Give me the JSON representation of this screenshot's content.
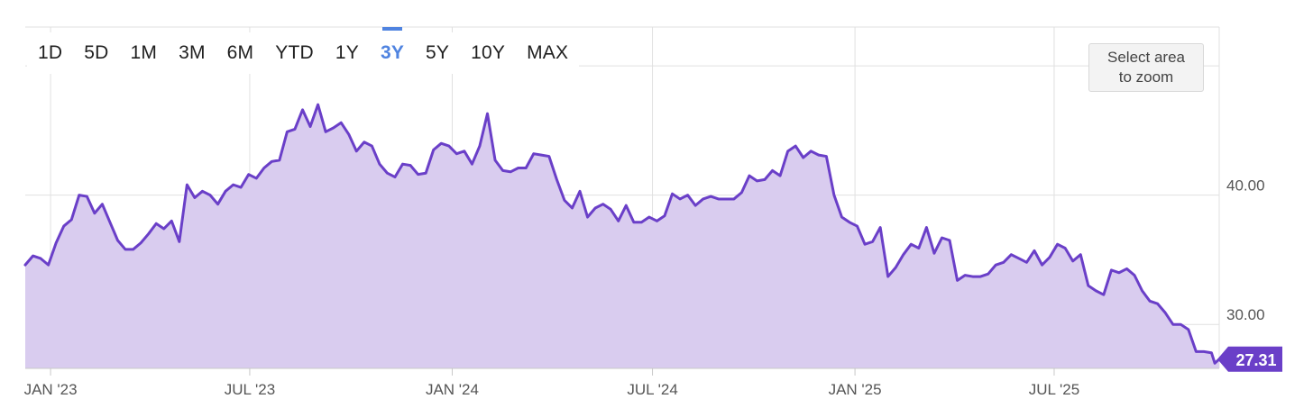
{
  "range_selector": {
    "options": [
      "1D",
      "5D",
      "1M",
      "3M",
      "6M",
      "YTD",
      "1Y",
      "3Y",
      "5Y",
      "10Y",
      "MAX"
    ],
    "selected": "3Y"
  },
  "zoom_hint": {
    "line1": "Select area",
    "line2": "to zoom"
  },
  "colors": {
    "line": "#6a3fc8",
    "fill": "#d9ccef",
    "grid": "#e0e0e0",
    "axis_text": "#555555",
    "active_range": "#4f83e0",
    "price_tag_bg": "#6a3fc8",
    "price_tag_text": "#ffffff"
  },
  "chart_data": {
    "type": "area",
    "title": "",
    "xlabel": "",
    "ylabel": "",
    "x_ticks": [
      "JAN '23",
      "JUL '23",
      "JAN '24",
      "JUL '24",
      "JAN '25",
      "JUL '25"
    ],
    "x_tick_dates": [
      "2023-01-01",
      "2023-07-01",
      "2024-01-01",
      "2024-07-01",
      "2025-01-01",
      "2025-07-01"
    ],
    "y_ticks": [
      "40.00",
      "30.00"
    ],
    "y_tick_values": [
      40,
      30
    ],
    "ylim": [
      26.6,
      53.0
    ],
    "xlim": [
      "2022-12-09",
      "2025-11-28"
    ],
    "grid": true,
    "last_price": "27.31",
    "series": [
      {
        "values": [
          [
            "2022-12-09",
            34.6
          ],
          [
            "2022-12-16",
            35.3
          ],
          [
            "2022-12-23",
            35.1
          ],
          [
            "2022-12-30",
            34.6
          ],
          [
            "2023-01-06",
            36.3
          ],
          [
            "2023-01-13",
            37.6
          ],
          [
            "2023-01-20",
            38.1
          ],
          [
            "2023-01-27",
            40.0
          ],
          [
            "2023-02-03",
            39.9
          ],
          [
            "2023-02-10",
            38.6
          ],
          [
            "2023-02-17",
            39.3
          ],
          [
            "2023-02-24",
            37.9
          ],
          [
            "2023-03-03",
            36.5
          ],
          [
            "2023-03-10",
            35.8
          ],
          [
            "2023-03-17",
            35.8
          ],
          [
            "2023-03-24",
            36.3
          ],
          [
            "2023-03-31",
            37.0
          ],
          [
            "2023-04-07",
            37.8
          ],
          [
            "2023-04-14",
            37.4
          ],
          [
            "2023-04-21",
            38.0
          ],
          [
            "2023-04-28",
            36.4
          ],
          [
            "2023-05-05",
            40.8
          ],
          [
            "2023-05-12",
            39.8
          ],
          [
            "2023-05-19",
            40.3
          ],
          [
            "2023-05-26",
            40.0
          ],
          [
            "2023-06-02",
            39.3
          ],
          [
            "2023-06-09",
            40.3
          ],
          [
            "2023-06-16",
            40.8
          ],
          [
            "2023-06-23",
            40.6
          ],
          [
            "2023-06-30",
            41.6
          ],
          [
            "2023-07-07",
            41.3
          ],
          [
            "2023-07-14",
            42.1
          ],
          [
            "2023-07-21",
            42.6
          ],
          [
            "2023-07-28",
            42.7
          ],
          [
            "2023-08-04",
            44.9
          ],
          [
            "2023-08-11",
            45.1
          ],
          [
            "2023-08-18",
            46.6
          ],
          [
            "2023-08-25",
            45.3
          ],
          [
            "2023-09-01",
            47.0
          ],
          [
            "2023-09-08",
            44.9
          ],
          [
            "2023-09-15",
            45.2
          ],
          [
            "2023-09-22",
            45.6
          ],
          [
            "2023-09-29",
            44.7
          ],
          [
            "2023-10-06",
            43.4
          ],
          [
            "2023-10-13",
            44.1
          ],
          [
            "2023-10-20",
            43.8
          ],
          [
            "2023-10-27",
            42.4
          ],
          [
            "2023-11-03",
            41.7
          ],
          [
            "2023-11-10",
            41.4
          ],
          [
            "2023-11-17",
            42.4
          ],
          [
            "2023-11-24",
            42.3
          ],
          [
            "2023-12-01",
            41.6
          ],
          [
            "2023-12-08",
            41.7
          ],
          [
            "2023-12-15",
            43.5
          ],
          [
            "2023-12-22",
            44.0
          ],
          [
            "2023-12-29",
            43.8
          ],
          [
            "2024-01-05",
            43.2
          ],
          [
            "2024-01-12",
            43.4
          ],
          [
            "2024-01-19",
            42.4
          ],
          [
            "2024-01-26",
            43.8
          ],
          [
            "2024-02-02",
            46.3
          ],
          [
            "2024-02-09",
            42.7
          ],
          [
            "2024-02-16",
            41.9
          ],
          [
            "2024-02-23",
            41.8
          ],
          [
            "2024-03-01",
            42.1
          ],
          [
            "2024-03-08",
            42.1
          ],
          [
            "2024-03-15",
            43.2
          ],
          [
            "2024-03-22",
            43.1
          ],
          [
            "2024-03-29",
            43.0
          ],
          [
            "2024-04-05",
            41.2
          ],
          [
            "2024-04-12",
            39.6
          ],
          [
            "2024-04-19",
            39.0
          ],
          [
            "2024-04-26",
            40.3
          ],
          [
            "2024-05-03",
            38.3
          ],
          [
            "2024-05-10",
            39.0
          ],
          [
            "2024-05-17",
            39.3
          ],
          [
            "2024-05-24",
            38.9
          ],
          [
            "2024-05-31",
            38.0
          ],
          [
            "2024-06-07",
            39.2
          ],
          [
            "2024-06-14",
            37.9
          ],
          [
            "2024-06-21",
            37.9
          ],
          [
            "2024-06-28",
            38.3
          ],
          [
            "2024-07-05",
            38.0
          ],
          [
            "2024-07-12",
            38.4
          ],
          [
            "2024-07-19",
            40.1
          ],
          [
            "2024-07-26",
            39.7
          ],
          [
            "2024-08-02",
            40.0
          ],
          [
            "2024-08-09",
            39.2
          ],
          [
            "2024-08-16",
            39.7
          ],
          [
            "2024-08-23",
            39.9
          ],
          [
            "2024-08-30",
            39.7
          ],
          [
            "2024-09-06",
            39.7
          ],
          [
            "2024-09-13",
            39.7
          ],
          [
            "2024-09-20",
            40.2
          ],
          [
            "2024-09-27",
            41.5
          ],
          [
            "2024-10-04",
            41.1
          ],
          [
            "2024-10-11",
            41.2
          ],
          [
            "2024-10-18",
            41.9
          ],
          [
            "2024-10-25",
            41.5
          ],
          [
            "2024-11-01",
            43.4
          ],
          [
            "2024-11-08",
            43.8
          ],
          [
            "2024-11-15",
            42.9
          ],
          [
            "2024-11-22",
            43.4
          ],
          [
            "2024-11-29",
            43.1
          ],
          [
            "2024-12-06",
            43.0
          ],
          [
            "2024-12-13",
            40.0
          ],
          [
            "2024-12-20",
            38.3
          ],
          [
            "2024-12-27",
            37.9
          ],
          [
            "2025-01-03",
            37.6
          ],
          [
            "2025-01-10",
            36.2
          ],
          [
            "2025-01-17",
            36.4
          ],
          [
            "2025-01-24",
            37.5
          ],
          [
            "2025-01-31",
            33.7
          ],
          [
            "2025-02-07",
            34.4
          ],
          [
            "2025-02-14",
            35.4
          ],
          [
            "2025-02-21",
            36.2
          ],
          [
            "2025-02-28",
            35.9
          ],
          [
            "2025-03-07",
            37.5
          ],
          [
            "2025-03-14",
            35.5
          ],
          [
            "2025-03-21",
            36.7
          ],
          [
            "2025-03-28",
            36.5
          ],
          [
            "2025-04-04",
            33.4
          ],
          [
            "2025-04-11",
            33.8
          ],
          [
            "2025-04-18",
            33.7
          ],
          [
            "2025-04-25",
            33.7
          ],
          [
            "2025-05-02",
            33.9
          ],
          [
            "2025-05-09",
            34.6
          ],
          [
            "2025-05-16",
            34.8
          ],
          [
            "2025-05-23",
            35.4
          ],
          [
            "2025-05-30",
            35.1
          ],
          [
            "2025-06-06",
            34.8
          ],
          [
            "2025-06-13",
            35.7
          ],
          [
            "2025-06-20",
            34.6
          ],
          [
            "2025-06-27",
            35.2
          ],
          [
            "2025-07-04",
            36.2
          ],
          [
            "2025-07-11",
            35.9
          ],
          [
            "2025-07-18",
            34.9
          ],
          [
            "2025-07-25",
            35.4
          ],
          [
            "2025-08-01",
            33.0
          ],
          [
            "2025-08-08",
            32.6
          ],
          [
            "2025-08-15",
            32.3
          ],
          [
            "2025-08-22",
            34.2
          ],
          [
            "2025-08-29",
            34.0
          ],
          [
            "2025-09-05",
            34.3
          ],
          [
            "2025-09-12",
            33.8
          ],
          [
            "2025-09-19",
            32.6
          ],
          [
            "2025-09-26",
            31.8
          ],
          [
            "2025-10-03",
            31.6
          ],
          [
            "2025-10-10",
            30.9
          ],
          [
            "2025-10-17",
            30.0
          ],
          [
            "2025-10-24",
            30.0
          ],
          [
            "2025-10-31",
            29.6
          ],
          [
            "2025-11-07",
            27.9
          ],
          [
            "2025-11-14",
            27.9
          ],
          [
            "2025-11-21",
            27.8
          ],
          [
            "2025-11-24",
            27.0
          ],
          [
            "2025-11-28",
            27.31
          ]
        ]
      }
    ]
  }
}
